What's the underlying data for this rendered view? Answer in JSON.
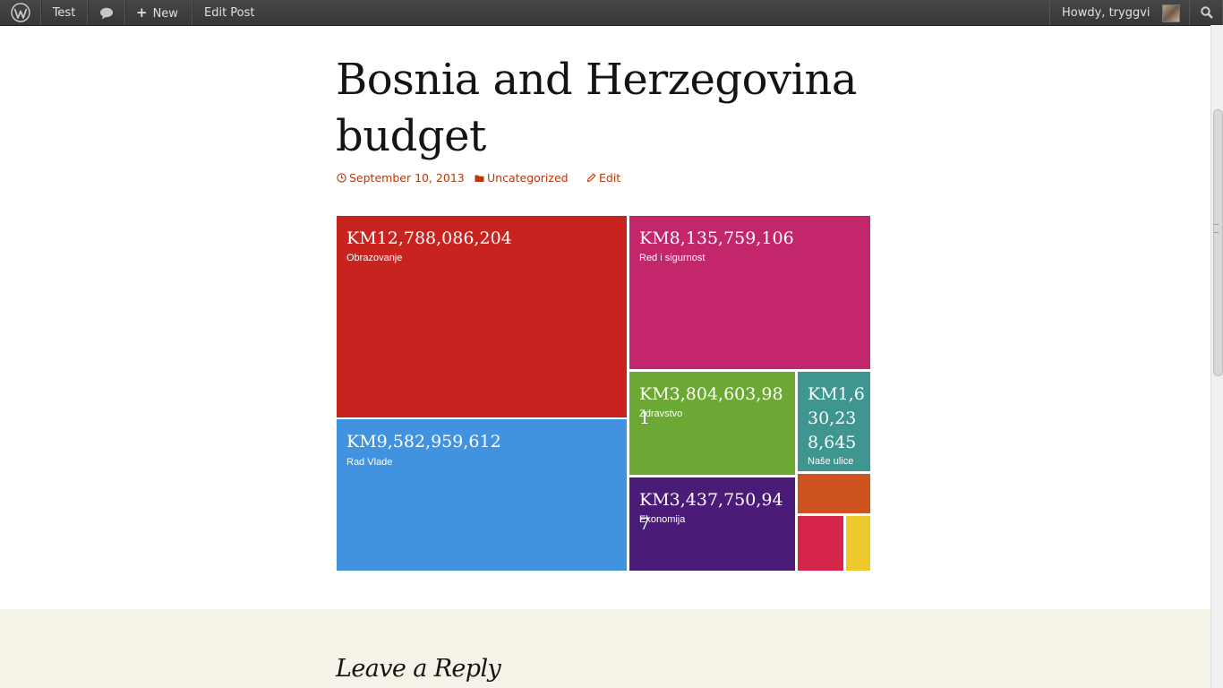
{
  "adminbar": {
    "site_name": "Test",
    "new_label": "New",
    "edit_post_label": "Edit Post",
    "howdy": "Howdy, tryggvi"
  },
  "post": {
    "title": "Bosnia and Herzegovina budget",
    "date": "September 10, 2013",
    "category": "Uncategorized",
    "edit_label": "Edit"
  },
  "chart_data": {
    "type": "treemap",
    "items": [
      {
        "value": 12788086204,
        "value_label": "KM12,788,086,204",
        "label": "Obrazovanje",
        "color": "#c9231f"
      },
      {
        "value": 9582959612,
        "value_label": "KM9,582,959,612",
        "label": "Rad Vlade",
        "color": "#4193e0"
      },
      {
        "value": 8135759106,
        "value_label": "KM8,135,759,106",
        "label": "Red i sigurnost",
        "color": "#c3266a"
      },
      {
        "value": 3804603981,
        "value_label": "KM3,804,603,981",
        "label": "Zdravstvo",
        "color": "#6ca934"
      },
      {
        "value": 3437750947,
        "value_label": "KM3,437,750,947",
        "label": "Ekonomija",
        "color": "#4a1c78"
      },
      {
        "value": 1630238645,
        "value_label": "KM1,630,238,645",
        "label": "Naše ulice",
        "color": "#3f9691"
      },
      {
        "color": "#ce531e"
      },
      {
        "color": "#d6254a"
      },
      {
        "color": "#eec92c"
      }
    ]
  },
  "comments": {
    "reply_title": "Leave a Reply"
  }
}
